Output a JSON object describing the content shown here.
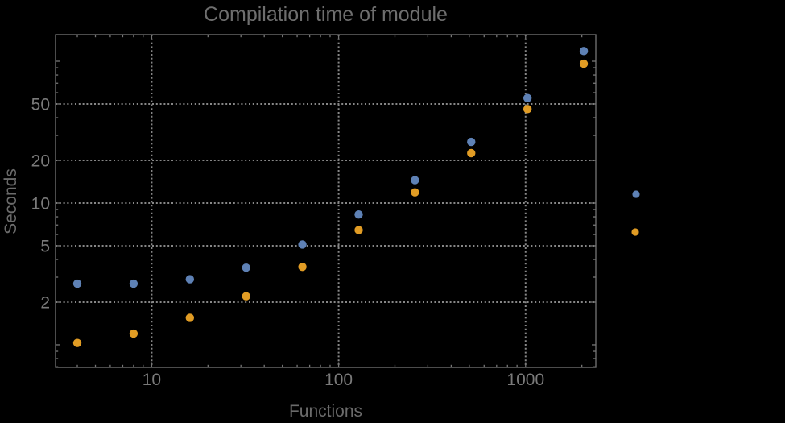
{
  "title": "Compilation time of module",
  "chart_data": {
    "type": "scatter",
    "title": "Compilation time of module",
    "xlabel": "Functions",
    "ylabel": "Seconds",
    "xscale": "log",
    "yscale": "log",
    "xlim": [
      3.06,
      2375
    ],
    "ylim": [
      0.693,
      154
    ],
    "grid": "dotted",
    "legend_position": "right-outside",
    "x_major_ticks": [
      10,
      100,
      1000
    ],
    "x_major_labels": [
      "10",
      "100",
      "1000"
    ],
    "y_major_ticks": [
      2,
      5,
      10,
      20,
      50
    ],
    "y_major_labels": [
      "2",
      "5",
      "10",
      "20",
      "50"
    ],
    "x": [
      4,
      8,
      16,
      32,
      64,
      128,
      256,
      512,
      1024,
      2048
    ],
    "series": [
      {
        "name": "series-blue",
        "color": "#5e81b5",
        "values": [
          2.7,
          2.7,
          2.9,
          3.5,
          5.1,
          8.3,
          14.5,
          27,
          55,
          118
        ]
      },
      {
        "name": "series-orange",
        "color": "#e19c24",
        "values": [
          1.03,
          1.2,
          1.55,
          2.2,
          3.55,
          6.45,
          11.9,
          22.5,
          46,
          96
        ]
      }
    ],
    "legend": {
      "items": [
        {
          "label": "",
          "color": "#5e81b5"
        },
        {
          "label": "",
          "color": "#e19c24"
        }
      ]
    }
  },
  "colors": {
    "background": "#000000",
    "frame": "#767676",
    "grid": "#878787",
    "text": "#7a7a7a",
    "title_text": "#6e6e6e"
  }
}
